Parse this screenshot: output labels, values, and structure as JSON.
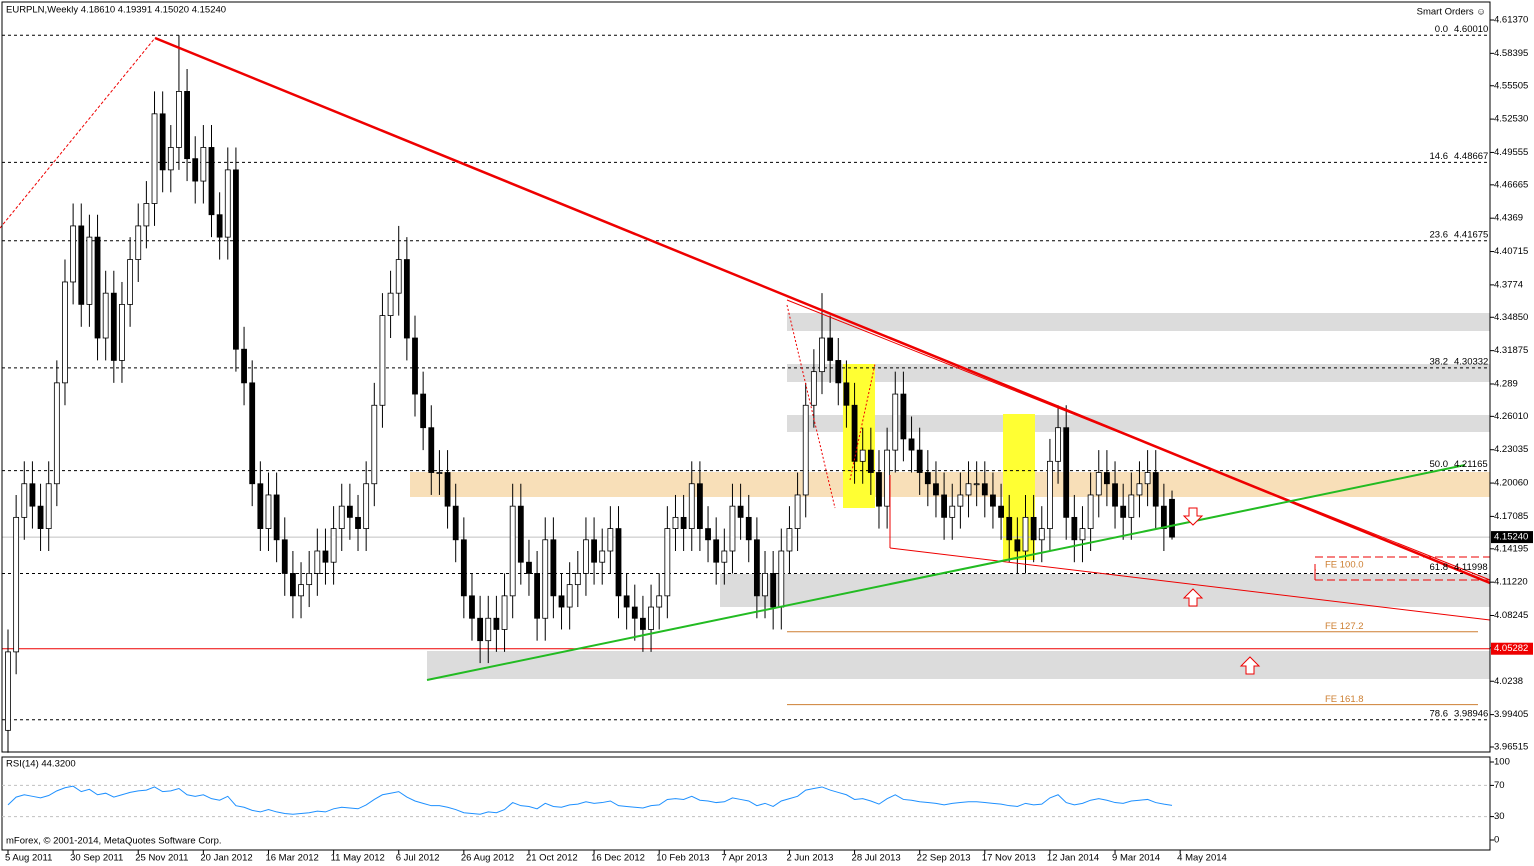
{
  "chart_data": {
    "type": "candlestick",
    "header": "EURPLN,Weekly  4.18610 4.19391 4.15020 4.15240",
    "smart_orders": "Smart Orders ☺",
    "copyright": "mForex, © 2001-2014, MetaQuotes Software Corp.",
    "ylim": [
      3.96515,
      4.6137
    ],
    "yticks": [
      {
        "value": 4.6137,
        "label": "4.61370"
      },
      4.58395,
      4.55505,
      {
        "value": 4.5253,
        "label": "4.52530"
      },
      4.49555,
      4.46665,
      4.4369,
      4.40715,
      4.3774,
      {
        "value": 4.3485,
        "label": "4.34850"
      },
      4.31875,
      4.289,
      {
        "value": 4.2601,
        "label": "4.26010"
      },
      4.23035,
      {
        "value": 4.2006,
        "label": "4.20060"
      },
      4.17085,
      4.14195,
      {
        "value": 4.1122,
        "label": "4.11220"
      },
      4.08245,
      4.05355,
      4.0238,
      3.99405,
      3.96515
    ],
    "current_price": {
      "value": 4.1524,
      "label": "4.15240"
    },
    "marked_level": 4.05282,
    "dates": [
      "5 Aug 2011",
      "30 Sep 2011",
      "25 Nov 2011",
      "20 Jan 2012",
      "16 Mar 2012",
      "11 May 2012",
      "6 Jul 2012",
      "26 Aug 2012",
      "21 Oct 2012",
      "16 Dec 2012",
      "10 Feb 2013",
      "7 Apr 2013",
      "2 Jun 2013",
      "28 Jul 2013",
      "22 Sep 2013",
      "17 Nov 2013",
      "12 Jan 2014",
      "9 Mar 2014",
      "4 May 2014"
    ],
    "fib_levels": [
      {
        "level": "0.0",
        "price": {
          "value": 4.6001,
          "label": "4.60010"
        }
      },
      {
        "level": "14.6",
        "price": 4.48667
      },
      {
        "level": "23.6",
        "price": 4.41675
      },
      {
        "level": "38.2",
        "price": 4.30332
      },
      {
        "level": "50.0",
        "price": 4.21165
      },
      {
        "level": "61.8",
        "price": 4.11998
      },
      {
        "level": "78.6",
        "price": 3.98946
      }
    ],
    "fe_levels": [
      {
        "label": "FE 100.0",
        "value": 4.123
      },
      {
        "label": "FE 127.2",
        "value": 4.068
      },
      {
        "label": "FE 161.8",
        "value": 4.003
      }
    ],
    "ohlc": [
      [
        3.98,
        4.07,
        3.96,
        4.05
      ],
      [
        4.05,
        4.19,
        4.03,
        4.17
      ],
      [
        4.17,
        4.22,
        4.15,
        4.2
      ],
      [
        4.2,
        4.22,
        4.16,
        4.18
      ],
      [
        4.18,
        4.2,
        4.14,
        4.16
      ],
      [
        4.16,
        4.22,
        4.14,
        4.2
      ],
      [
        4.2,
        4.31,
        4.18,
        4.29
      ],
      [
        4.29,
        4.4,
        4.27,
        4.38
      ],
      [
        4.38,
        4.45,
        4.36,
        4.43
      ],
      [
        4.43,
        4.45,
        4.34,
        4.36
      ],
      [
        4.36,
        4.44,
        4.34,
        4.42
      ],
      [
        4.42,
        4.44,
        4.31,
        4.33
      ],
      [
        4.33,
        4.39,
        4.31,
        4.37
      ],
      [
        4.37,
        4.39,
        4.29,
        4.31
      ],
      [
        4.31,
        4.38,
        4.29,
        4.36
      ],
      [
        4.36,
        4.42,
        4.34,
        4.4
      ],
      [
        4.4,
        4.45,
        4.38,
        4.43
      ],
      [
        4.43,
        4.47,
        4.41,
        4.45
      ],
      [
        4.45,
        4.55,
        4.43,
        4.53
      ],
      [
        4.53,
        4.55,
        4.46,
        4.48
      ],
      [
        4.48,
        4.52,
        4.46,
        4.5
      ],
      [
        4.5,
        4.6,
        4.48,
        4.55
      ],
      [
        4.55,
        4.57,
        4.47,
        4.49
      ],
      [
        4.49,
        4.51,
        4.45,
        4.47
      ],
      [
        4.47,
        4.52,
        4.45,
        4.5
      ],
      [
        4.5,
        4.52,
        4.42,
        4.44
      ],
      [
        4.44,
        4.46,
        4.4,
        4.42
      ],
      [
        4.42,
        4.5,
        4.4,
        4.48
      ],
      [
        4.48,
        4.5,
        4.3,
        4.32
      ],
      [
        4.32,
        4.34,
        4.27,
        4.29
      ],
      [
        4.29,
        4.31,
        4.18,
        4.2
      ],
      [
        4.2,
        4.22,
        4.14,
        4.16
      ],
      [
        4.16,
        4.21,
        4.14,
        4.19
      ],
      [
        4.19,
        4.21,
        4.13,
        4.15
      ],
      [
        4.15,
        4.17,
        4.1,
        4.12
      ],
      [
        4.12,
        4.14,
        4.08,
        4.1
      ],
      [
        4.1,
        4.13,
        4.08,
        4.11
      ],
      [
        4.11,
        4.14,
        4.09,
        4.12
      ],
      [
        4.12,
        4.16,
        4.1,
        4.14
      ],
      [
        4.14,
        4.16,
        4.11,
        4.13
      ],
      [
        4.13,
        4.18,
        4.11,
        4.16
      ],
      [
        4.16,
        4.2,
        4.14,
        4.18
      ],
      [
        4.18,
        4.2,
        4.15,
        4.17
      ],
      [
        4.17,
        4.19,
        4.14,
        4.16
      ],
      [
        4.16,
        4.22,
        4.14,
        4.2
      ],
      [
        4.2,
        4.29,
        4.18,
        4.27
      ],
      [
        4.27,
        4.37,
        4.25,
        4.35
      ],
      [
        4.35,
        4.39,
        4.33,
        4.37
      ],
      [
        4.37,
        4.43,
        4.35,
        4.4
      ],
      [
        4.4,
        4.42,
        4.31,
        4.33
      ],
      [
        4.33,
        4.35,
        4.26,
        4.28
      ],
      [
        4.28,
        4.3,
        4.23,
        4.25
      ],
      [
        4.25,
        4.27,
        4.19,
        4.21
      ],
      [
        4.21,
        4.23,
        4.19,
        4.21
      ],
      [
        4.21,
        4.23,
        4.16,
        4.18
      ],
      [
        4.18,
        4.2,
        4.13,
        4.15
      ],
      [
        4.15,
        4.17,
        4.08,
        4.1
      ],
      [
        4.1,
        4.12,
        4.06,
        4.08
      ],
      [
        4.08,
        4.1,
        4.04,
        4.06
      ],
      [
        4.06,
        4.1,
        4.04,
        4.08
      ],
      [
        4.08,
        4.1,
        4.05,
        4.07
      ],
      [
        4.07,
        4.12,
        4.05,
        4.1
      ],
      [
        4.1,
        4.2,
        4.08,
        4.18
      ],
      [
        4.18,
        4.2,
        4.11,
        4.13
      ],
      [
        4.13,
        4.15,
        4.1,
        4.12
      ],
      [
        4.12,
        4.14,
        4.06,
        4.08
      ],
      [
        4.08,
        4.17,
        4.06,
        4.15
      ],
      [
        4.15,
        4.17,
        4.08,
        4.1
      ],
      [
        4.1,
        4.12,
        4.07,
        4.09
      ],
      [
        4.09,
        4.13,
        4.07,
        4.11
      ],
      [
        4.11,
        4.14,
        4.09,
        4.12
      ],
      [
        4.12,
        4.17,
        4.1,
        4.15
      ],
      [
        4.15,
        4.17,
        4.11,
        4.13
      ],
      [
        4.13,
        4.16,
        4.11,
        4.14
      ],
      [
        4.14,
        4.18,
        4.12,
        4.16
      ],
      [
        4.16,
        4.18,
        4.08,
        4.1
      ],
      [
        4.1,
        4.12,
        4.07,
        4.09
      ],
      [
        4.09,
        4.11,
        4.06,
        4.08
      ],
      [
        4.08,
        4.1,
        4.05,
        4.07
      ],
      [
        4.07,
        4.11,
        4.05,
        4.09
      ],
      [
        4.09,
        4.12,
        4.07,
        4.1
      ],
      [
        4.1,
        4.18,
        4.08,
        4.16
      ],
      [
        4.16,
        4.19,
        4.14,
        4.17
      ],
      [
        4.17,
        4.19,
        4.14,
        4.16
      ],
      [
        4.16,
        4.22,
        4.14,
        4.2
      ],
      [
        4.2,
        4.22,
        4.14,
        4.16
      ],
      [
        4.16,
        4.18,
        4.13,
        4.15
      ],
      [
        4.15,
        4.17,
        4.11,
        4.13
      ],
      [
        4.13,
        4.16,
        4.11,
        4.14
      ],
      [
        4.14,
        4.2,
        4.12,
        4.18
      ],
      [
        4.18,
        4.2,
        4.15,
        4.17
      ],
      [
        4.17,
        4.19,
        4.13,
        4.15
      ],
      [
        4.15,
        4.17,
        4.08,
        4.1
      ],
      [
        4.1,
        4.14,
        4.08,
        4.12
      ],
      [
        4.12,
        4.14,
        4.07,
        4.09
      ],
      [
        4.09,
        4.16,
        4.07,
        4.14
      ],
      [
        4.14,
        4.18,
        4.12,
        4.16
      ],
      [
        4.16,
        4.21,
        4.14,
        4.19
      ],
      [
        4.19,
        4.29,
        4.17,
        4.27
      ],
      [
        4.27,
        4.32,
        4.25,
        4.3
      ],
      [
        4.3,
        4.37,
        4.28,
        4.33
      ],
      [
        4.33,
        4.35,
        4.29,
        4.31
      ],
      [
        4.31,
        4.33,
        4.27,
        4.29
      ],
      [
        4.29,
        4.31,
        4.25,
        4.27
      ],
      [
        4.27,
        4.29,
        4.2,
        4.22
      ],
      [
        4.22,
        4.25,
        4.2,
        4.23
      ],
      [
        4.23,
        4.25,
        4.19,
        4.21
      ],
      [
        4.21,
        4.23,
        4.16,
        4.18
      ],
      [
        4.18,
        4.25,
        4.16,
        4.23
      ],
      [
        4.23,
        4.3,
        4.21,
        4.28
      ],
      [
        4.28,
        4.3,
        4.22,
        4.24
      ],
      [
        4.24,
        4.26,
        4.21,
        4.23
      ],
      [
        4.23,
        4.25,
        4.19,
        4.21
      ],
      [
        4.21,
        4.23,
        4.18,
        4.2
      ],
      [
        4.2,
        4.22,
        4.17,
        4.19
      ],
      [
        4.19,
        4.21,
        4.15,
        4.17
      ],
      [
        4.17,
        4.2,
        4.15,
        4.18
      ],
      [
        4.18,
        4.21,
        4.16,
        4.19
      ],
      [
        4.19,
        4.22,
        4.17,
        4.2
      ],
      [
        4.2,
        4.22,
        4.18,
        4.2
      ],
      [
        4.2,
        4.22,
        4.17,
        4.19
      ],
      [
        4.19,
        4.21,
        4.16,
        4.18
      ],
      [
        4.18,
        4.2,
        4.15,
        4.17
      ],
      [
        4.17,
        4.19,
        4.13,
        4.15
      ],
      [
        4.15,
        4.17,
        4.12,
        4.14
      ],
      [
        4.14,
        4.19,
        4.12,
        4.17
      ],
      [
        4.17,
        4.19,
        4.13,
        4.15
      ],
      [
        4.15,
        4.18,
        4.13,
        4.16
      ],
      [
        4.16,
        4.24,
        4.14,
        4.22
      ],
      [
        4.22,
        4.27,
        4.2,
        4.25
      ],
      [
        4.25,
        4.27,
        4.15,
        4.17
      ],
      [
        4.17,
        4.19,
        4.13,
        4.15
      ],
      [
        4.15,
        4.18,
        4.13,
        4.16
      ],
      [
        4.16,
        4.21,
        4.14,
        4.19
      ],
      [
        4.19,
        4.23,
        4.17,
        4.21
      ],
      [
        4.21,
        4.23,
        4.18,
        4.2
      ],
      [
        4.2,
        4.22,
        4.16,
        4.18
      ],
      [
        4.18,
        4.2,
        4.15,
        4.17
      ],
      [
        4.17,
        4.21,
        4.15,
        4.19
      ],
      [
        4.19,
        4.22,
        4.17,
        4.2
      ],
      [
        4.2,
        4.23,
        4.18,
        4.21
      ],
      [
        4.21,
        4.23,
        4.16,
        4.18
      ],
      [
        4.18,
        4.2,
        4.14,
        4.16
      ],
      [
        4.1861,
        4.19391,
        4.1502,
        4.1524
      ]
    ],
    "rsi": {
      "label": "RSI(14) 44.3200",
      "color": "#1e90ff",
      "ylim": [
        0,
        100
      ],
      "yticks": [
        100,
        70,
        30,
        0
      ],
      "values": [
        45,
        55,
        58,
        56,
        54,
        57,
        63,
        67,
        69,
        62,
        65,
        58,
        60,
        55,
        58,
        61,
        63,
        64,
        68,
        62,
        63,
        66,
        58,
        56,
        58,
        53,
        51,
        56,
        44,
        42,
        38,
        36,
        39,
        36,
        34,
        33,
        34,
        35,
        37,
        36,
        40,
        42,
        41,
        40,
        45,
        52,
        58,
        60,
        62,
        55,
        50,
        47,
        44,
        44,
        42,
        39,
        35,
        34,
        33,
        36,
        35,
        39,
        48,
        44,
        43,
        40,
        47,
        43,
        42,
        45,
        46,
        49,
        47,
        48,
        50,
        44,
        43,
        42,
        41,
        44,
        45,
        52,
        53,
        52,
        56,
        51,
        50,
        48,
        49,
        54,
        52,
        50,
        44,
        47,
        43,
        50,
        53,
        56,
        64,
        66,
        68,
        64,
        61,
        58,
        52,
        53,
        50,
        46,
        53,
        58,
        52,
        51,
        49,
        48,
        47,
        45,
        47,
        48,
        49,
        49,
        48,
        47,
        46,
        44,
        43,
        47,
        45,
        46,
        54,
        58,
        48,
        45,
        47,
        51,
        53,
        51,
        48,
        47,
        50,
        51,
        52,
        48,
        46,
        44.32
      ]
    }
  }
}
